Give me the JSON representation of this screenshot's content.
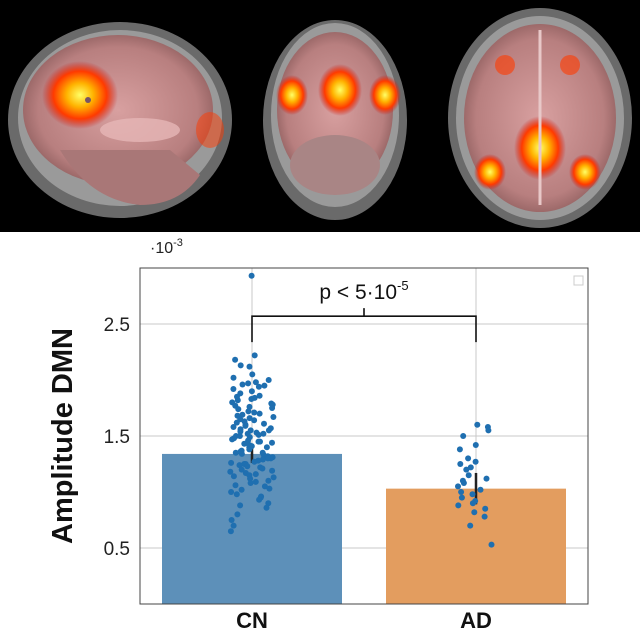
{
  "figure": {
    "brain_views": [
      "sagittal",
      "coronal",
      "axial"
    ]
  },
  "chart_data": {
    "type": "bar",
    "categories": [
      "CN",
      "AD"
    ],
    "values": [
      1.34,
      1.03
    ],
    "errors": [
      0.08,
      0.14
    ],
    "scale_factor": "·10",
    "scale_exponent": "-3",
    "ylabel": "Amplitude DMN",
    "xlabel": "",
    "ylim": [
      0.0,
      3.0
    ],
    "yticks": [
      "0.5",
      "1.5",
      "2.5"
    ],
    "ytick_values": [
      0.5,
      1.5,
      2.5
    ],
    "grid": true,
    "legend": "top-right (empty)",
    "colors": {
      "CN": "#5d90b9",
      "AD": "#e39d5f",
      "points": "#1f6fb0"
    },
    "significance": {
      "text": "p < 5·10",
      "exponent": "-5",
      "between": [
        "CN",
        "AD"
      ],
      "y": 2.57
    },
    "points": {
      "CN": [
        2.93,
        2.22,
        2.18,
        2.13,
        2.12,
        2.05,
        2.02,
        2.0,
        1.98,
        1.97,
        1.96,
        1.95,
        1.94,
        1.92,
        1.9,
        1.88,
        1.86,
        1.85,
        1.84,
        1.83,
        1.82,
        1.8,
        1.79,
        1.78,
        1.77,
        1.76,
        1.75,
        1.74,
        1.72,
        1.71,
        1.7,
        1.69,
        1.68,
        1.67,
        1.66,
        1.65,
        1.64,
        1.63,
        1.62,
        1.61,
        1.6,
        1.59,
        1.58,
        1.57,
        1.56,
        1.55,
        1.55,
        1.54,
        1.53,
        1.52,
        1.52,
        1.51,
        1.5,
        1.5,
        1.49,
        1.48,
        1.47,
        1.46,
        1.45,
        1.45,
        1.44,
        1.43,
        1.42,
        1.41,
        1.4,
        1.4,
        1.39,
        1.38,
        1.37,
        1.36,
        1.35,
        1.35,
        1.34,
        1.33,
        1.32,
        1.31,
        1.3,
        1.3,
        1.29,
        1.28,
        1.27,
        1.26,
        1.25,
        1.25,
        1.24,
        1.23,
        1.22,
        1.21,
        1.2,
        1.19,
        1.18,
        1.17,
        1.16,
        1.15,
        1.14,
        1.13,
        1.12,
        1.1,
        1.09,
        1.08,
        1.06,
        1.05,
        1.03,
        1.02,
        1.0,
        0.98,
        0.96,
        0.95,
        0.93,
        0.9,
        0.88,
        0.86,
        0.8,
        0.75,
        0.7,
        0.65
      ],
      "AD": [
        1.6,
        1.58,
        1.55,
        1.5,
        1.42,
        1.38,
        1.3,
        1.27,
        1.25,
        1.22,
        1.2,
        1.15,
        1.12,
        1.1,
        1.08,
        1.05,
        1.02,
        1.0,
        0.98,
        0.95,
        0.92,
        0.9,
        0.88,
        0.85,
        0.82,
        0.78,
        0.7,
        0.53
      ]
    }
  }
}
